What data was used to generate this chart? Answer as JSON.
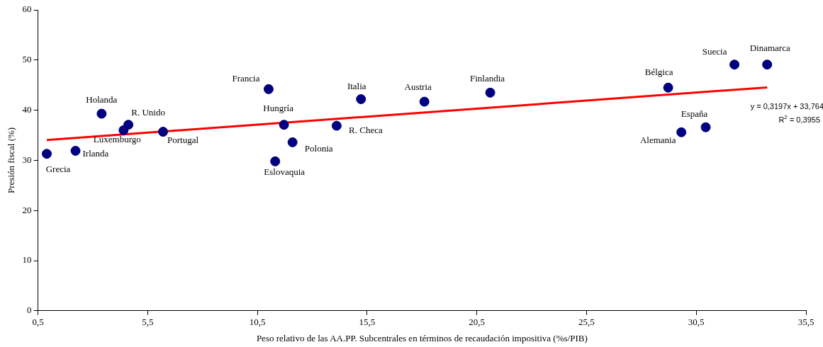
{
  "chart_data": {
    "type": "scatter",
    "xlabel": "Peso relativo de las AA.PP. Subcentrales en términos de recaudación impositiva (%s/PIB)",
    "ylabel": "Presión fiscal (%)",
    "xlim": [
      0.5,
      35.5
    ],
    "xticks": [
      {
        "value": 0.5,
        "label": "0,5"
      },
      {
        "value": 5.5,
        "label": "5,5"
      },
      {
        "value": 10.5,
        "label": "10,5"
      },
      {
        "value": 15.5,
        "label": "15,5"
      },
      {
        "value": 20.5,
        "label": "20,5"
      },
      {
        "value": 25.5,
        "label": "25,5"
      },
      {
        "value": 30.5,
        "label": "30,5"
      },
      {
        "value": 35.5,
        "label": "35,5"
      }
    ],
    "ylim": [
      0,
      60
    ],
    "yticks": [
      0,
      10,
      20,
      30,
      40,
      50,
      60
    ],
    "grid": false,
    "legend": false,
    "marker": "circle",
    "series": [
      {
        "color": "#000080",
        "x": [
          0.9,
          2.21,
          3.4,
          4.4,
          4.62,
          6.2,
          11.01,
          11.71,
          12.1,
          11.31,
          14.11,
          15.22,
          18.11,
          21.11,
          29.22,
          29.82,
          30.93,
          32.24,
          33.73
        ],
        "values": [
          31.3,
          31.9,
          39.3,
          36.0,
          37.1,
          35.7,
          44.2,
          37.1,
          33.6,
          29.8,
          36.9,
          42.2,
          41.7,
          43.5,
          44.5,
          35.6,
          36.6,
          49.1,
          49.1
        ]
      },
      {
        "type": "line",
        "color": "#ff0000",
        "marker": "none",
        "line_style": "solid",
        "x": [
          0.9,
          33.73
        ],
        "values": [
          34.05,
          44.55
        ]
      }
    ],
    "annotations": [
      {
        "text": "Grecia",
        "x": 0.9,
        "y": 31.3
      },
      {
        "text": "Irlanda",
        "x": 2.21,
        "y": 31.9
      },
      {
        "text": "Holanda",
        "x": 3.4,
        "y": 39.3
      },
      {
        "text": "Luxemburgo",
        "x": 4.4,
        "y": 36.0
      },
      {
        "text": "R. Unido",
        "x": 4.62,
        "y": 37.1
      },
      {
        "text": "Portugal",
        "x": 6.2,
        "y": 35.7
      },
      {
        "text": "Francia",
        "x": 11.01,
        "y": 44.2
      },
      {
        "text": "Hungría",
        "x": 11.71,
        "y": 37.1
      },
      {
        "text": "Polonia",
        "x": 12.1,
        "y": 33.6
      },
      {
        "text": "Eslovaquia",
        "x": 11.31,
        "y": 29.8
      },
      {
        "text": "R. Checa",
        "x": 14.11,
        "y": 36.9
      },
      {
        "text": "Italia",
        "x": 15.22,
        "y": 42.2
      },
      {
        "text": "Austria",
        "x": 18.11,
        "y": 41.7
      },
      {
        "text": "Finlandia",
        "x": 21.11,
        "y": 43.5
      },
      {
        "text": "Bélgica",
        "x": 29.22,
        "y": 44.5
      },
      {
        "text": "Alemania",
        "x": 29.82,
        "y": 35.6
      },
      {
        "text": "España",
        "x": 30.93,
        "y": 36.6
      },
      {
        "text": "Suecia",
        "x": 32.24,
        "y": 49.1
      },
      {
        "text": "Dinamarca",
        "x": 33.73,
        "y": 49.1
      },
      "y = 0,3197x + 33,764",
      "R$^{2}$ = 0,3955"
    ]
  }
}
